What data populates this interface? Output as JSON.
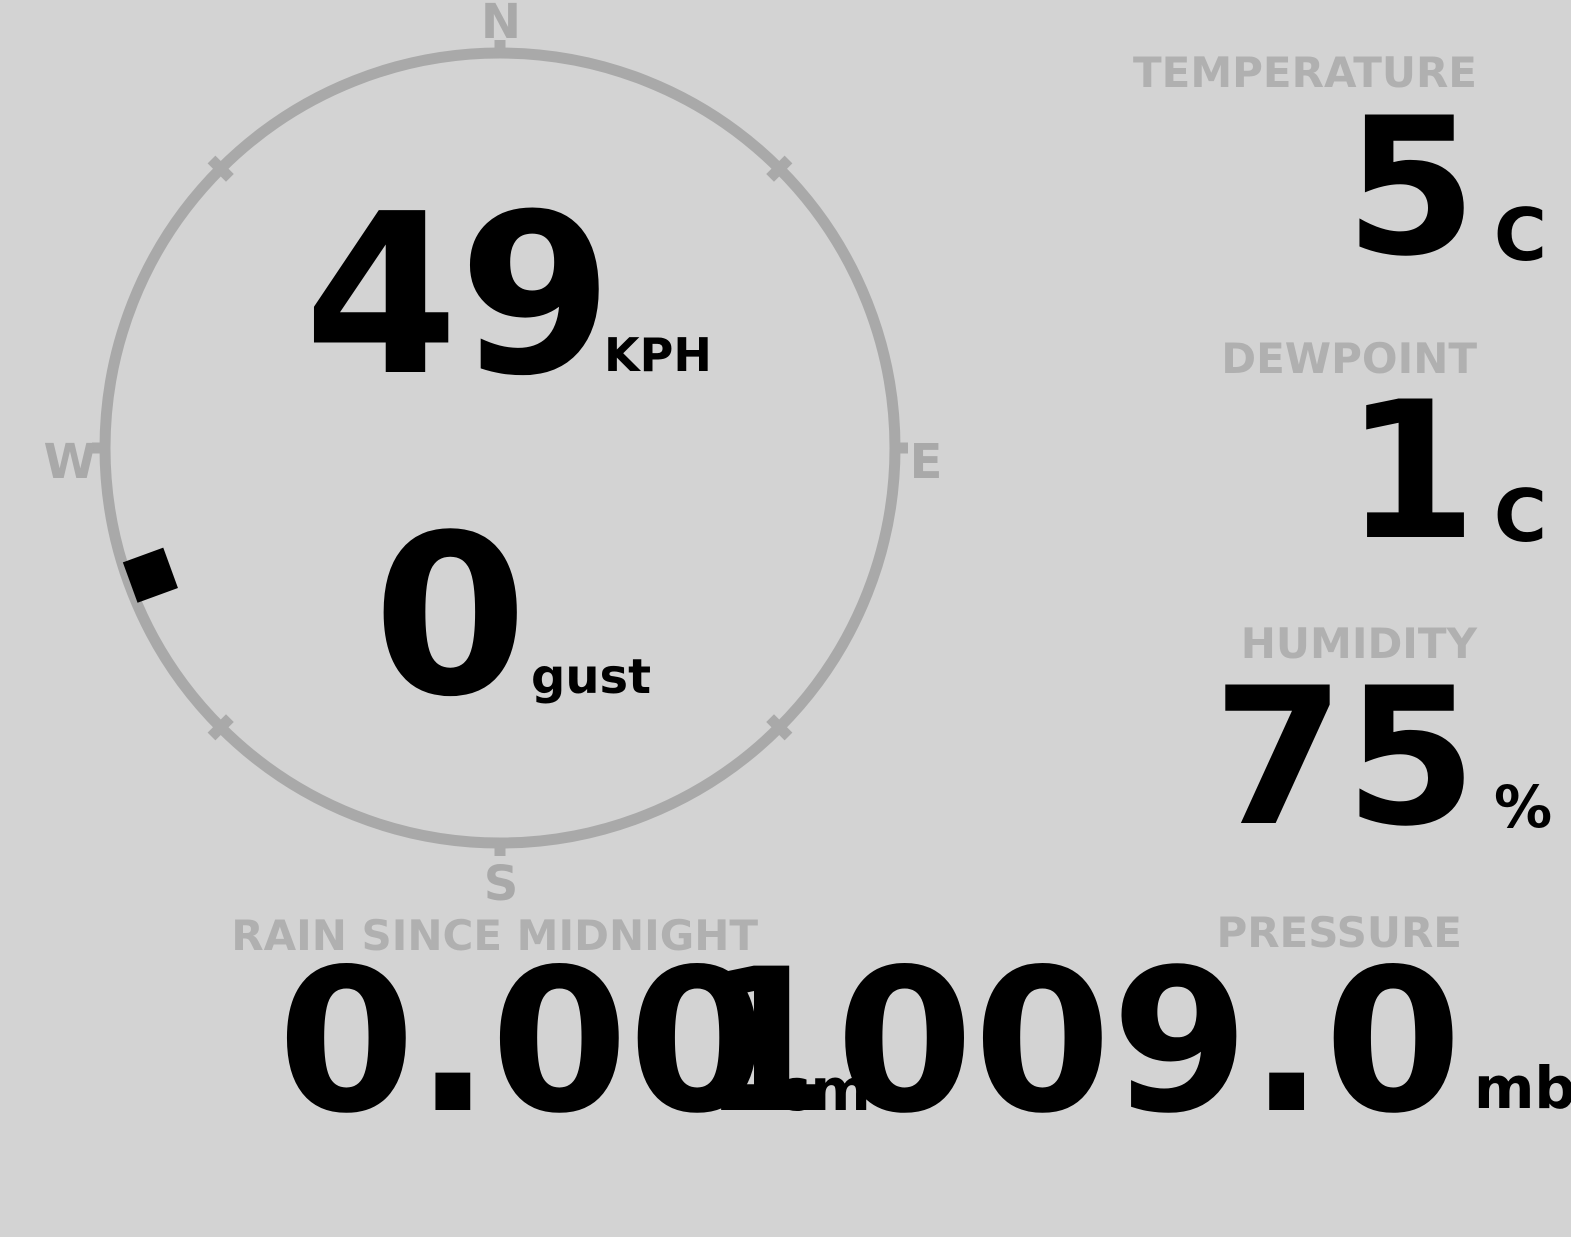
{
  "theme": {
    "background": "#d3d3d3",
    "label_color": "#b0b0b0",
    "ring_color": "#a9a9a9",
    "value_color": "#000000"
  },
  "compass": {
    "cardinal_labels": {
      "north": "N",
      "east": "E",
      "south": "S",
      "west": "W"
    },
    "wind_speed": {
      "value": "49",
      "unit": "KPH"
    },
    "wind_gust": {
      "value": "0",
      "unit": "gust"
    },
    "wind_direction_deg": 250
  },
  "metrics": {
    "temperature": {
      "label": "TEMPERATURE",
      "value": "5",
      "unit": "C"
    },
    "dewpoint": {
      "label": "DEWPOINT",
      "value": "1",
      "unit": "C"
    },
    "humidity": {
      "label": "HUMIDITY",
      "value": "75",
      "unit": "%"
    },
    "rain_since_midnight": {
      "label": "RAIN SINCE MIDNIGHT",
      "value": "0.00",
      "unit": "cm"
    },
    "pressure": {
      "label": "PRESSURE",
      "value": "1009.0",
      "unit": "mb"
    }
  }
}
